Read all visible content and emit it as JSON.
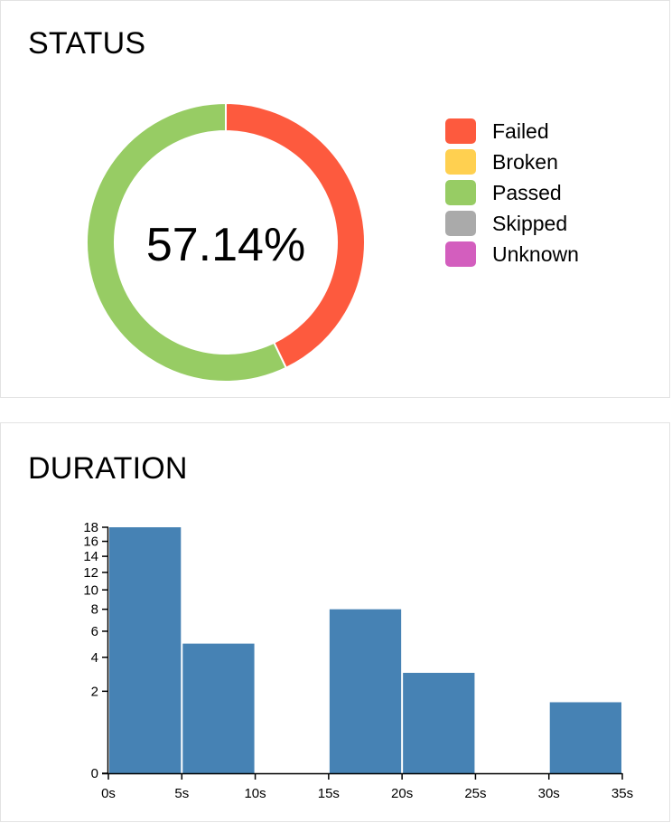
{
  "status": {
    "title": "STATUS",
    "center_label": "57.14%",
    "legend": [
      {
        "label": "Failed",
        "color": "#fd5a3e"
      },
      {
        "label": "Broken",
        "color": "#ffd050"
      },
      {
        "label": "Passed",
        "color": "#97cc64"
      },
      {
        "label": "Skipped",
        "color": "#aaaaaa"
      },
      {
        "label": "Unknown",
        "color": "#d35ebe"
      }
    ]
  },
  "duration": {
    "title": "DURATION"
  },
  "chart_data": [
    {
      "type": "pie",
      "variant": "donut",
      "labels": [
        "Failed",
        "Broken",
        "Passed",
        "Skipped",
        "Unknown"
      ],
      "values": [
        42.86,
        0,
        57.14,
        0,
        0
      ],
      "colors": [
        "#fd5a3e",
        "#ffd050",
        "#97cc64",
        "#aaaaaa",
        "#d35ebe"
      ],
      "title": "STATUS",
      "center_text": "57.14%",
      "legend_position": "right"
    },
    {
      "type": "bar",
      "variant": "histogram",
      "title": "DURATION",
      "bar_color": "#4682b4",
      "bins": [
        {
          "x0": 0,
          "x1": 5,
          "value": 18
        },
        {
          "x0": 5,
          "x1": 10,
          "value": 5
        },
        {
          "x0": 10,
          "x1": 15,
          "value": 0
        },
        {
          "x0": 15,
          "x1": 20,
          "value": 8
        },
        {
          "x0": 20,
          "x1": 25,
          "value": 3
        },
        {
          "x0": 25,
          "x1": 30,
          "value": 0
        },
        {
          "x0": 30,
          "x1": 35,
          "value": 1.5
        }
      ],
      "x_ticks": [
        "0s",
        "5s",
        "10s",
        "15s",
        "20s",
        "25s",
        "30s",
        "35s"
      ],
      "x_tick_values": [
        0,
        5,
        10,
        15,
        20,
        25,
        30,
        35
      ],
      "y_ticks": [
        0,
        2,
        4,
        6,
        8,
        10,
        12,
        14,
        16,
        18
      ],
      "xlim": [
        0,
        35
      ],
      "ylim": [
        0,
        18
      ],
      "y_scale": "sqrt",
      "grid": false
    }
  ]
}
